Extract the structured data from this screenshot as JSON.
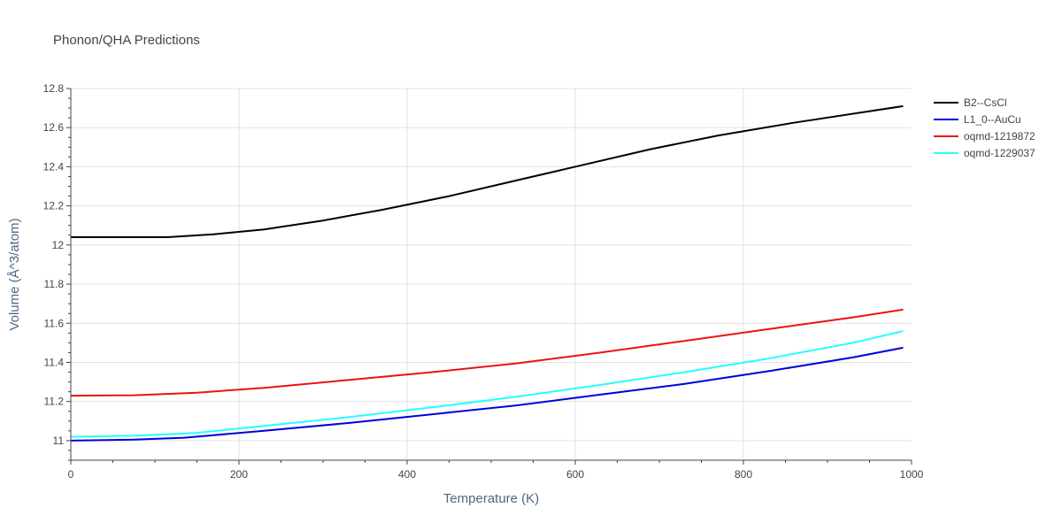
{
  "chart_data": {
    "type": "line",
    "title": "Phonon/QHA Predictions",
    "xlabel": "Temperature (K)",
    "ylabel": "Volume (Å^3/atom)",
    "xlim": [
      0,
      1000
    ],
    "ylim": [
      10.9,
      12.8
    ],
    "xticks": [
      0,
      200,
      400,
      600,
      800,
      1000
    ],
    "yticks": [
      11,
      11.2,
      11.4,
      11.6,
      11.8,
      12,
      12.2,
      12.4,
      12.6,
      12.8
    ],
    "grid": true,
    "legend_position": "top-right",
    "series": [
      {
        "name": "B2--CsCl",
        "color": "#000000",
        "x": [
          0,
          50,
          115,
          170,
          230,
          300,
          370,
          450,
          530,
          610,
          690,
          770,
          860,
          990
        ],
        "y": [
          12.04,
          12.04,
          12.04,
          12.055,
          12.08,
          12.125,
          12.18,
          12.25,
          12.33,
          12.41,
          12.49,
          12.56,
          12.625,
          12.71
        ]
      },
      {
        "name": "L1_0--AuCu",
        "color": "#0000dd",
        "x": [
          0,
          75,
          135,
          230,
          330,
          430,
          530,
          630,
          730,
          830,
          930,
          990
        ],
        "y": [
          11.0,
          11.005,
          11.015,
          11.05,
          11.09,
          11.135,
          11.18,
          11.235,
          11.29,
          11.355,
          11.425,
          11.475
        ]
      },
      {
        "name": "oqmd-1219872",
        "color": "#ee1111",
        "x": [
          0,
          75,
          150,
          230,
          330,
          430,
          530,
          630,
          730,
          830,
          930,
          990
        ],
        "y": [
          11.23,
          11.232,
          11.245,
          11.27,
          11.31,
          11.35,
          11.395,
          11.45,
          11.51,
          11.57,
          11.63,
          11.67
        ]
      },
      {
        "name": "oqmd-1229037",
        "color": "#22ffff",
        "x": [
          0,
          75,
          150,
          230,
          330,
          430,
          530,
          630,
          730,
          830,
          930,
          990
        ],
        "y": [
          11.02,
          11.025,
          11.04,
          11.075,
          11.12,
          11.17,
          11.225,
          11.285,
          11.35,
          11.42,
          11.5,
          11.56
        ]
      }
    ]
  }
}
